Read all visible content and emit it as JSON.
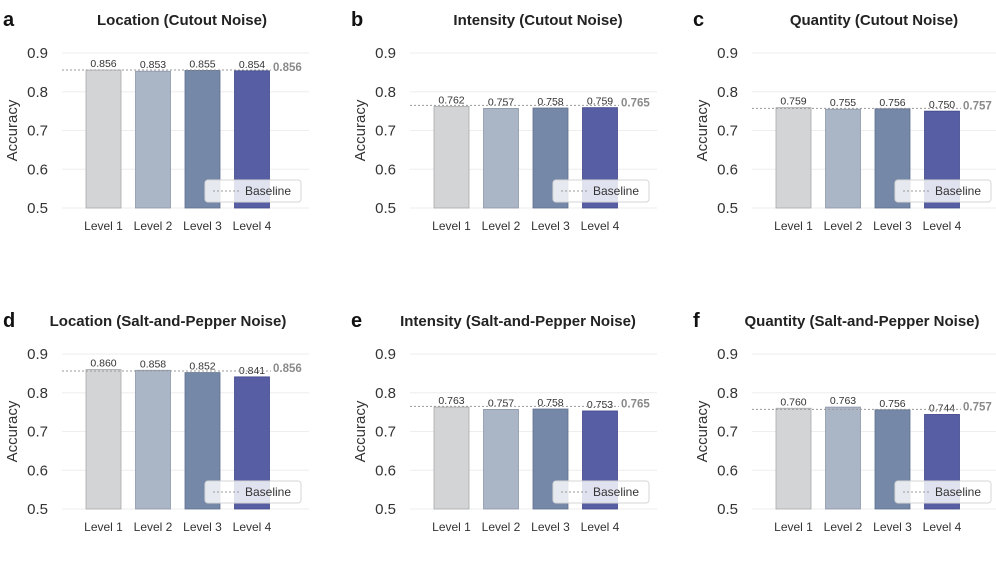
{
  "chart_data": [
    {
      "letter": "a",
      "type": "bar",
      "title": "Location (Cutout Noise)",
      "ylabel": "Accuracy",
      "ylim": [
        0.5,
        0.9
      ],
      "yticks": [
        "0.5",
        "0.6",
        "0.7",
        "0.8",
        "0.9"
      ],
      "categories": [
        "Level 1",
        "Level 2",
        "Level 3",
        "Level 4"
      ],
      "values": [
        0.856,
        0.853,
        0.855,
        0.854
      ],
      "value_labels": [
        "0.856",
        "0.853",
        "0.855",
        "0.854"
      ],
      "baseline": 0.856,
      "baseline_label": "0.856",
      "legend": "Baseline"
    },
    {
      "letter": "b",
      "type": "bar",
      "title": "Intensity (Cutout Noise)",
      "ylabel": "Accuracy",
      "ylim": [
        0.5,
        0.9
      ],
      "yticks": [
        "0.5",
        "0.6",
        "0.7",
        "0.8",
        "0.9"
      ],
      "categories": [
        "Level 1",
        "Level 2",
        "Level 3",
        "Level 4"
      ],
      "values": [
        0.762,
        0.757,
        0.758,
        0.759
      ],
      "value_labels": [
        "0.762",
        "0.757",
        "0.758",
        "0.759"
      ],
      "baseline": 0.765,
      "baseline_label": "0.765",
      "legend": "Baseline"
    },
    {
      "letter": "c",
      "type": "bar",
      "title": "Quantity (Cutout Noise)",
      "ylabel": "Accuracy",
      "ylim": [
        0.5,
        0.9
      ],
      "yticks": [
        "0.5",
        "0.6",
        "0.7",
        "0.8",
        "0.9"
      ],
      "categories": [
        "Level 1",
        "Level 2",
        "Level 3",
        "Level 4"
      ],
      "values": [
        0.759,
        0.755,
        0.756,
        0.75
      ],
      "value_labels": [
        "0.759",
        "0.755",
        "0.756",
        "0.750"
      ],
      "baseline": 0.757,
      "baseline_label": "0.757",
      "legend": "Baseline"
    },
    {
      "letter": "d",
      "type": "bar",
      "title": "Location (Salt-and-Pepper Noise)",
      "ylabel": "Accuracy",
      "ylim": [
        0.5,
        0.9
      ],
      "yticks": [
        "0.5",
        "0.6",
        "0.7",
        "0.8",
        "0.9"
      ],
      "categories": [
        "Level 1",
        "Level 2",
        "Level 3",
        "Level 4"
      ],
      "values": [
        0.86,
        0.858,
        0.852,
        0.841
      ],
      "value_labels": [
        "0.860",
        "0.858",
        "0.852",
        "0.841"
      ],
      "baseline": 0.856,
      "baseline_label": "0.856",
      "legend": "Baseline"
    },
    {
      "letter": "e",
      "type": "bar",
      "title": "Intensity (Salt-and-Pepper Noise)",
      "ylabel": "Accuracy",
      "ylim": [
        0.5,
        0.9
      ],
      "yticks": [
        "0.5",
        "0.6",
        "0.7",
        "0.8",
        "0.9"
      ],
      "categories": [
        "Level 1",
        "Level 2",
        "Level 3",
        "Level 4"
      ],
      "values": [
        0.763,
        0.757,
        0.758,
        0.753
      ],
      "value_labels": [
        "0.763",
        "0.757",
        "0.758",
        "0.753"
      ],
      "baseline": 0.765,
      "baseline_label": "0.765",
      "legend": "Baseline"
    },
    {
      "letter": "f",
      "type": "bar",
      "title": "Quantity (Salt-and-Pepper Noise)",
      "ylabel": "Accuracy",
      "ylim": [
        0.5,
        0.9
      ],
      "yticks": [
        "0.5",
        "0.6",
        "0.7",
        "0.8",
        "0.9"
      ],
      "categories": [
        "Level 1",
        "Level 2",
        "Level 3",
        "Level 4"
      ],
      "values": [
        0.76,
        0.763,
        0.756,
        0.744
      ],
      "value_labels": [
        "0.760",
        "0.763",
        "0.756",
        "0.744"
      ],
      "baseline": 0.757,
      "baseline_label": "0.757",
      "legend": "Baseline"
    }
  ],
  "colors": {
    "bars": [
      "#d3d4d6",
      "#aab5c6",
      "#7588a8",
      "#575ea4"
    ],
    "bar_edges": [
      "#a8a9ab",
      "#8c97a8",
      "#5f6f8c",
      "#43498a"
    ],
    "baseline": "#9a9a9a",
    "grid": "#eeeeee"
  }
}
